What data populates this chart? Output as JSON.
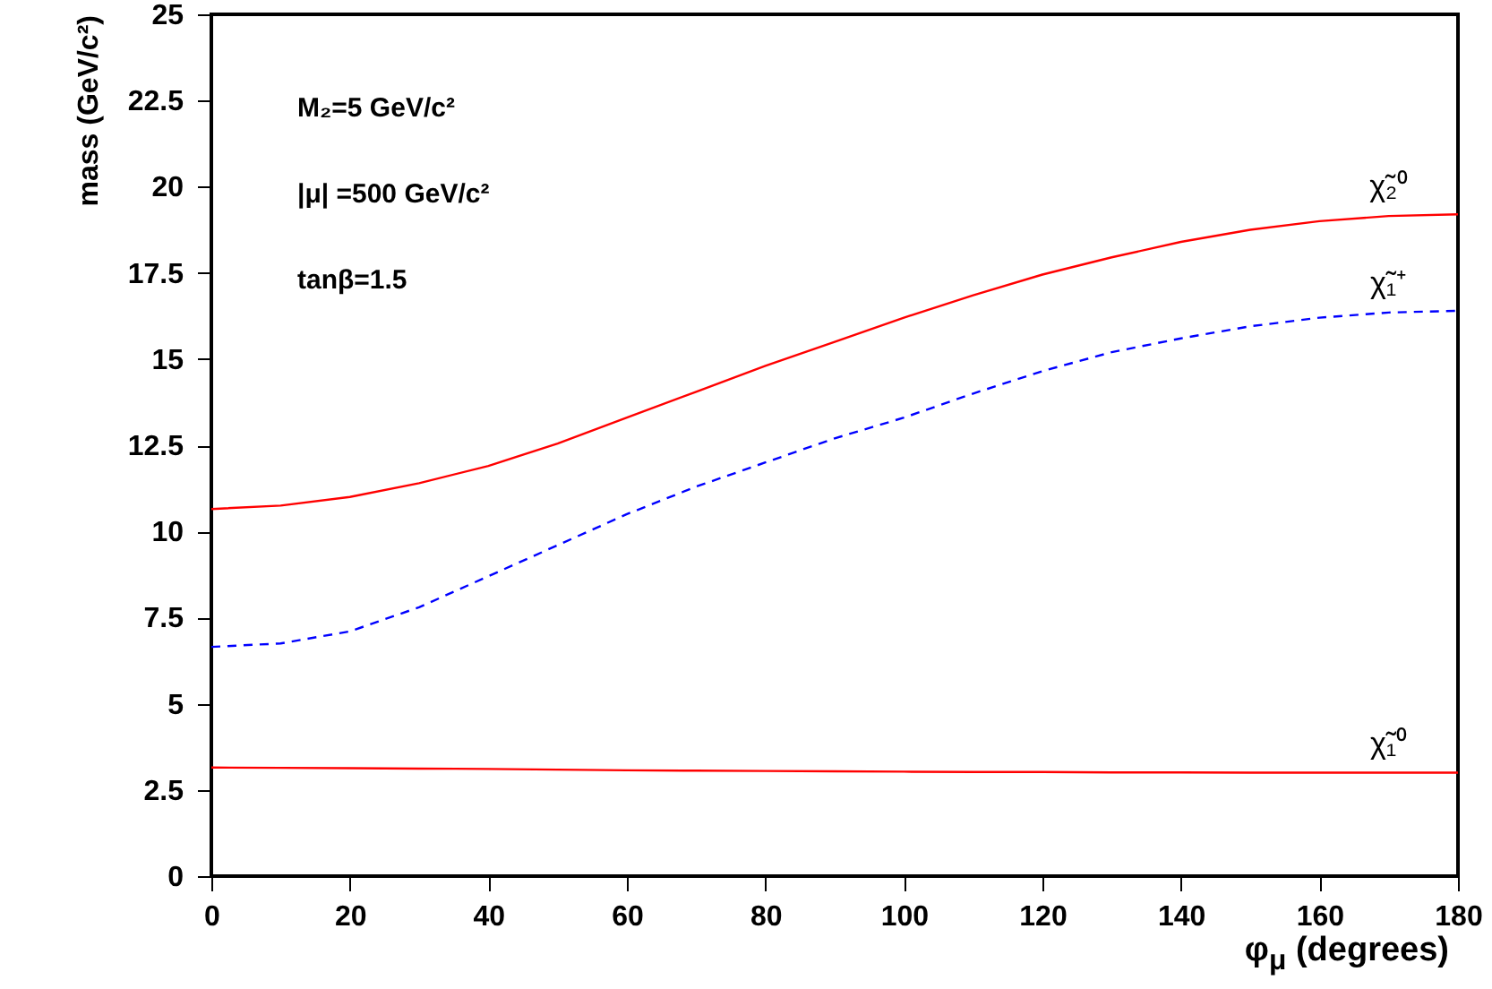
{
  "chart_data": {
    "type": "line",
    "ylabel": "mass (GeV/c²)",
    "xlabel": "φ$_{μ}$ (degrees)",
    "annotations": [
      "M₂=5 GeV/c²",
      "|μ| =500 GeV/c²",
      "tanβ=1.5"
    ],
    "x": [
      0,
      10,
      20,
      30,
      40,
      50,
      60,
      70,
      80,
      90,
      100,
      110,
      120,
      130,
      140,
      150,
      160,
      170,
      180
    ],
    "series": [
      {
        "name": "χ̃₂⁰",
        "color": "#ff0000",
        "line_style": "solid",
        "values": [
          10.65,
          10.75,
          11.0,
          11.4,
          11.9,
          12.55,
          13.3,
          14.05,
          14.8,
          15.5,
          16.2,
          16.85,
          17.45,
          17.95,
          18.4,
          18.75,
          19.0,
          19.15,
          19.2
        ]
      },
      {
        "name": "χ̃₁⁺",
        "color": "#0000ff",
        "line_style": "dashed",
        "values": [
          6.65,
          6.75,
          7.1,
          7.8,
          8.7,
          9.6,
          10.5,
          11.3,
          12.0,
          12.7,
          13.3,
          14.0,
          14.65,
          15.2,
          15.6,
          15.95,
          16.2,
          16.35,
          16.4
        ]
      },
      {
        "name": "χ̃₁⁰",
        "color": "#ff0000",
        "line_style": "solid",
        "values": [
          3.15,
          3.14,
          3.13,
          3.12,
          3.11,
          3.09,
          3.07,
          3.06,
          3.05,
          3.04,
          3.03,
          3.02,
          3.02,
          3.01,
          3.01,
          3.0,
          3.0,
          3.0,
          3.0
        ]
      }
    ],
    "xlim": [
      0,
      180
    ],
    "xticks": [
      0,
      20,
      40,
      60,
      80,
      100,
      120,
      140,
      160,
      180
    ],
    "ylim": [
      0,
      25
    ],
    "yticks": [
      0,
      2.5,
      5,
      7.5,
      10,
      12.5,
      15,
      17.5,
      20,
      22.5,
      25
    ],
    "grid": false
  }
}
